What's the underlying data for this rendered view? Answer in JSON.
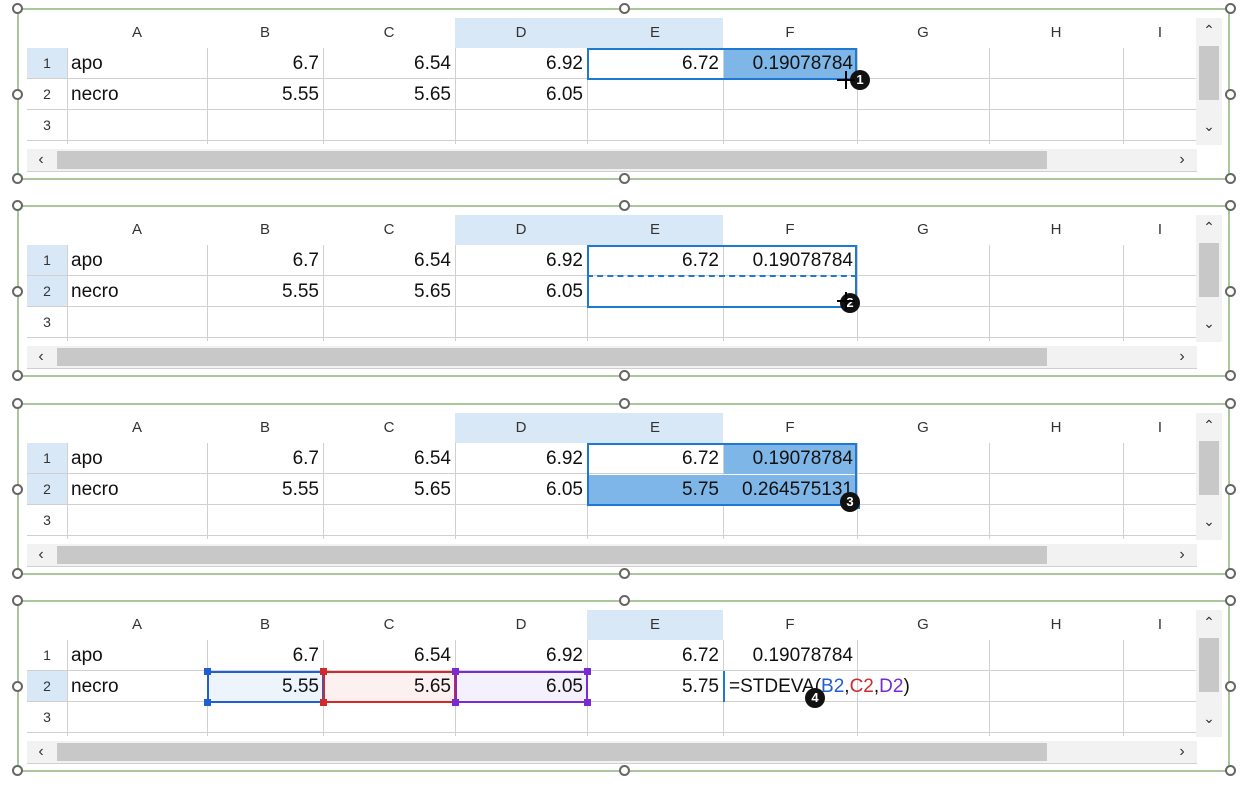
{
  "columns": [
    "A",
    "B",
    "C",
    "D",
    "E",
    "F",
    "G",
    "H",
    "I"
  ],
  "rows": [
    "1",
    "2",
    "3"
  ],
  "panels": [
    {
      "row1": {
        "a": "apo",
        "b": "6.7",
        "c": "6.54",
        "d": "6.92",
        "e": "6.72",
        "f": "0.19078784"
      },
      "row2": {
        "a": "necro",
        "b": "5.55",
        "c": "5.65",
        "d": "6.05",
        "e": "",
        "f": ""
      },
      "badge": "1"
    },
    {
      "row1": {
        "a": "apo",
        "b": "6.7",
        "c": "6.54",
        "d": "6.92",
        "e": "6.72",
        "f": "0.19078784"
      },
      "row2": {
        "a": "necro",
        "b": "5.55",
        "c": "5.65",
        "d": "6.05",
        "e": "",
        "f": ""
      },
      "badge": "2"
    },
    {
      "row1": {
        "a": "apo",
        "b": "6.7",
        "c": "6.54",
        "d": "6.92",
        "e": "6.72",
        "f": "0.19078784"
      },
      "row2": {
        "a": "necro",
        "b": "5.55",
        "c": "5.65",
        "d": "6.05",
        "e": "5.75",
        "f": "0.264575131"
      },
      "badge": "3"
    },
    {
      "row1": {
        "a": "apo",
        "b": "6.7",
        "c": "6.54",
        "d": "6.92",
        "e": "6.72",
        "f": "0.19078784"
      },
      "row2": {
        "a": "necro",
        "b": "5.55",
        "c": "5.65",
        "d": "6.05",
        "e": "5.75",
        "f": ""
      },
      "badge": "4",
      "formula": {
        "prefix": "=STDEVA(",
        "ref1": "B2",
        "sep1": ",",
        "ref2": "C2",
        "sep2": ",",
        "ref3": "D2",
        "suffix": ")"
      }
    }
  ],
  "colors": {
    "ref1": "#1f5fd0",
    "ref2": "#d02a2a",
    "ref3": "#7a2bd0",
    "selection": "#1f78d1",
    "fill": "#7fb6e8",
    "header_sel": "#d8e8f6",
    "border": "#a9c79a"
  }
}
